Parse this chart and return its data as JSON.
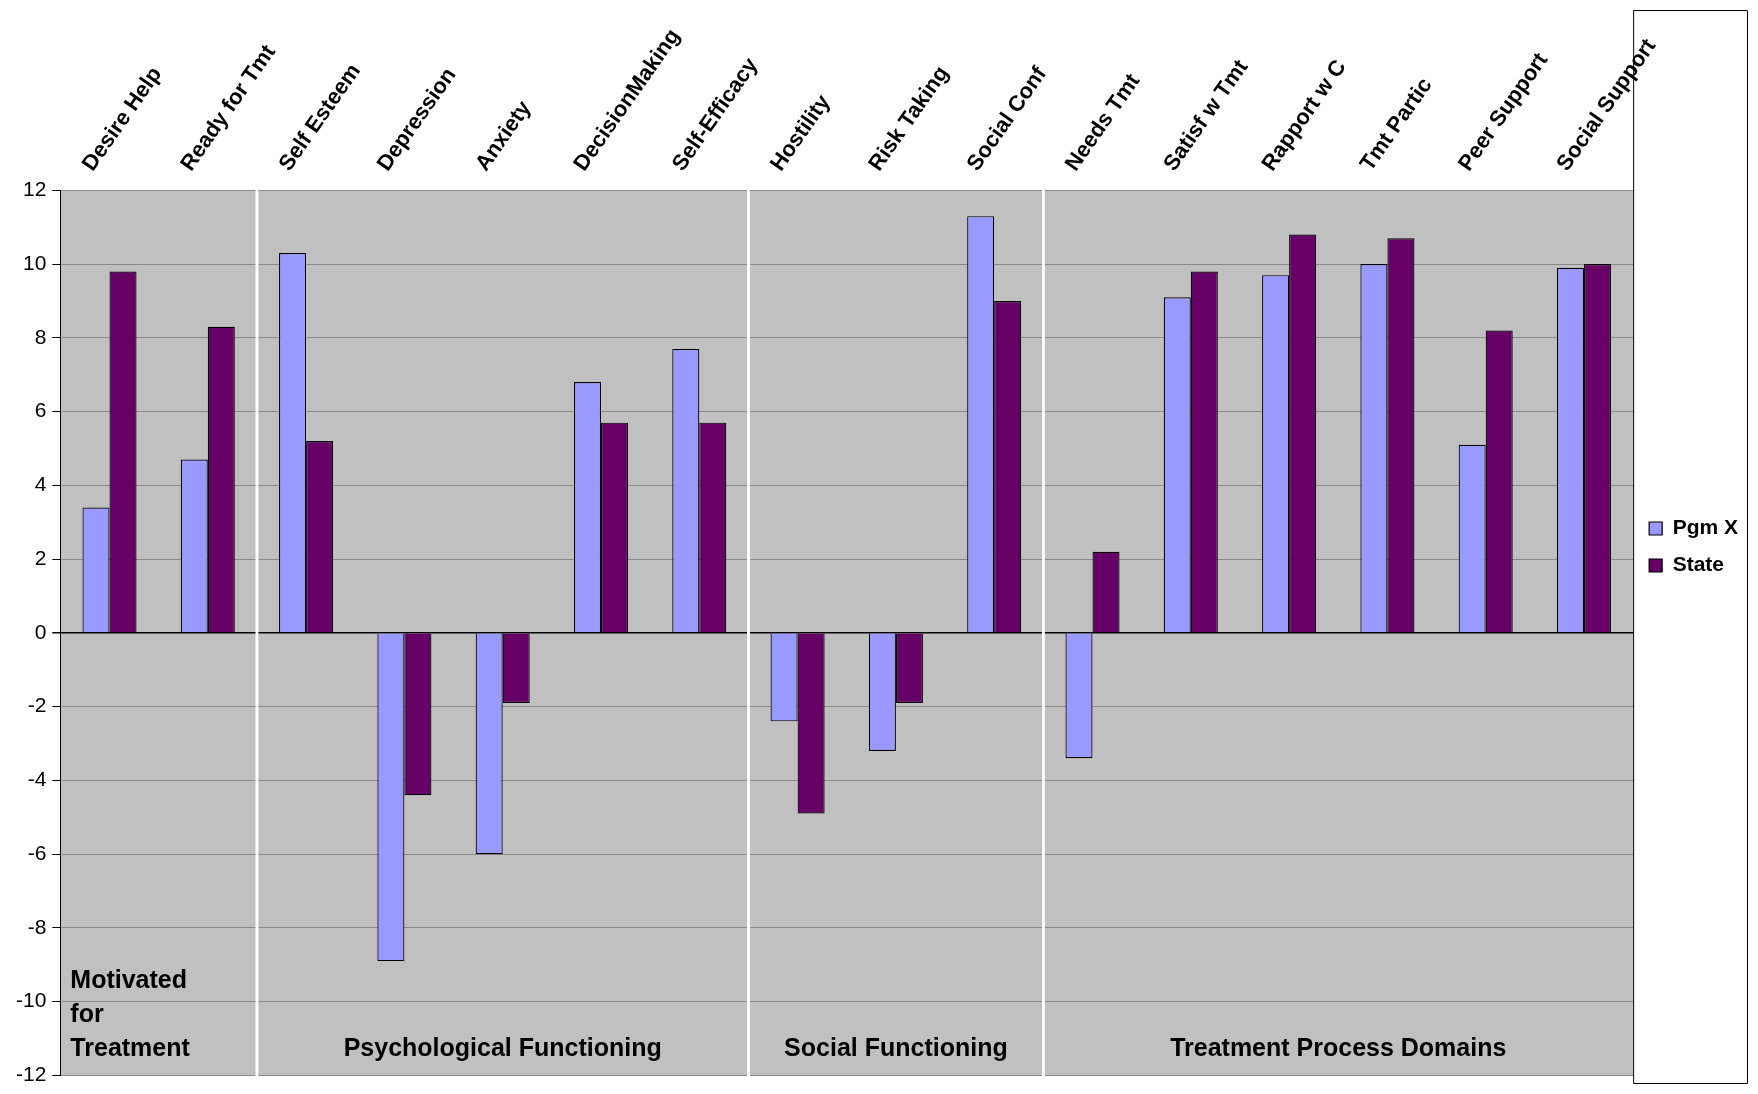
{
  "chart_data": {
    "type": "bar",
    "categories": [
      "Desire Help",
      "Ready for Tmt",
      "Self Esteem",
      "Depression",
      "Anxiety",
      "DecisionMaking",
      "Self-Efficacy",
      "Hostility",
      "Risk Taking",
      "Social Conf",
      "Needs Tmt",
      "Satisf w Tmt",
      "Rapport w C",
      "Tmt Partic",
      "Peer Support",
      "Social Support"
    ],
    "series": [
      {
        "name": "Pgm X",
        "color": "#9999ff",
        "values": [
          3.4,
          4.7,
          10.3,
          -8.9,
          -6.0,
          6.8,
          7.7,
          -2.4,
          -3.2,
          11.3,
          -3.4,
          9.1,
          9.7,
          10.0,
          5.1,
          9.9
        ]
      },
      {
        "name": "State",
        "color": "#660066",
        "values": [
          9.8,
          8.3,
          5.2,
          -4.4,
          -1.9,
          5.7,
          5.7,
          -4.9,
          -1.9,
          9.0,
          2.2,
          9.8,
          10.8,
          10.7,
          8.2,
          10.0
        ]
      }
    ],
    "ylim": [
      -12,
      12
    ],
    "yticks": [
      -12,
      -10,
      -8,
      -6,
      -4,
      -2,
      0,
      2,
      4,
      6,
      8,
      10,
      12
    ],
    "grid": "y",
    "legend": "right",
    "annotations": [
      "Motivated for Treatment",
      "Psychological Functioning",
      "Social Functioning",
      "Treatment Process Domains"
    ]
  }
}
